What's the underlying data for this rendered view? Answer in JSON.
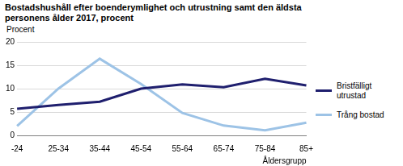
{
  "chart_data": {
    "type": "line",
    "title": "Bostadshushåll efter boenderymlighet och utrustning samt den äldsta personens ålder 2017, procent",
    "y_label": "Procent",
    "x_label": "Åldersgrupp",
    "categories": [
      "-24",
      "25-34",
      "35-44",
      "45-54",
      "55-64",
      "65-74",
      "75-84",
      "85+"
    ],
    "series": [
      {
        "name": "Bristfälligt utrustad",
        "color": "#1f1f6e",
        "values": [
          5.7,
          6.5,
          7.2,
          10.0,
          10.9,
          10.3,
          12.1,
          10.7
        ]
      },
      {
        "name": "Trång bostad",
        "color": "#9dc3e6",
        "values": [
          2.0,
          10.0,
          16.4,
          11.0,
          4.8,
          2.1,
          1.1,
          2.7
        ]
      }
    ],
    "ylim": [
      0,
      20
    ],
    "yticks": [
      0,
      5,
      10,
      15,
      20
    ],
    "grid": true,
    "legend": "right"
  }
}
